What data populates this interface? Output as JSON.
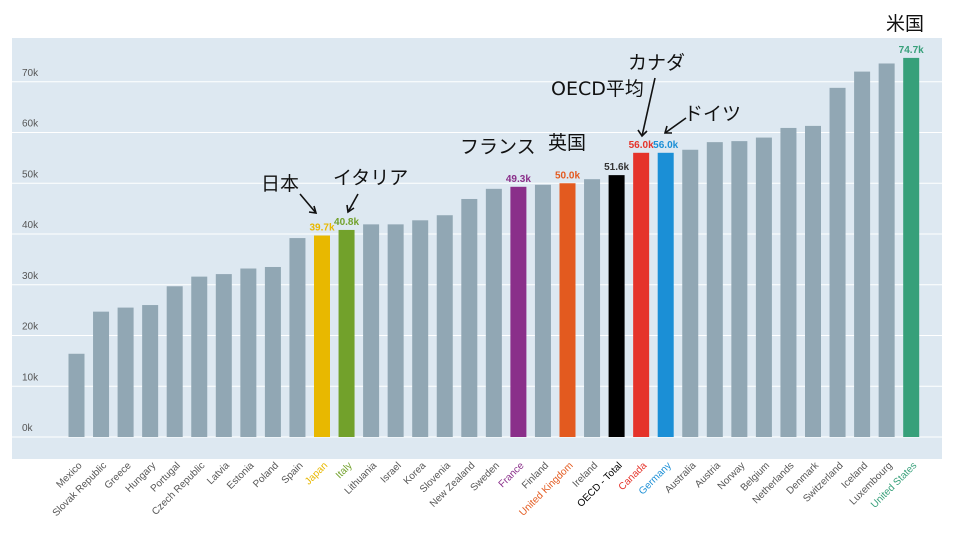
{
  "chart_data": {
    "type": "bar",
    "categories": [
      "Mexico",
      "Slovak Republic",
      "Greece",
      "Hungary",
      "Portugal",
      "Czech Republic",
      "Latvia",
      "Estonia",
      "Poland",
      "Spain",
      "Japan",
      "Italy",
      "Lithuania",
      "Israel",
      "Korea",
      "Slovenia",
      "New Zealand",
      "Sweden",
      "France",
      "Finland",
      "United Kingdom",
      "Ireland",
      "OECD - Total",
      "Canada",
      "Germany",
      "Australia",
      "Austria",
      "Norway",
      "Belgium",
      "Netherlands",
      "Denmark",
      "Switzerland",
      "Iceland",
      "Luxembourg",
      "United States"
    ],
    "values": [
      16.4,
      24.7,
      25.5,
      26.0,
      29.7,
      31.6,
      32.1,
      33.2,
      33.5,
      39.2,
      39.7,
      40.8,
      41.9,
      41.9,
      42.7,
      43.7,
      46.9,
      48.9,
      49.3,
      49.7,
      50.0,
      50.8,
      51.6,
      56.0,
      56.0,
      56.6,
      58.1,
      58.3,
      59.0,
      60.9,
      61.3,
      68.8,
      72.0,
      73.6,
      74.7
    ],
    "ylim": [
      0,
      80
    ],
    "yticks": [
      "0k",
      "10k",
      "20k",
      "30k",
      "40k",
      "50k",
      "60k",
      "70k"
    ],
    "grid": true,
    "colors": {
      "default": "#91a7b4",
      "background": "#dde8f1",
      "Japan": "#e8b800",
      "Italy": "#72a12b",
      "France": "#8a2f8a",
      "United Kingdom": "#e35a1f",
      "OECD - Total": "#000000",
      "Canada": "#e5332a",
      "Germany": "#1b8fd6",
      "United States": "#37a07a"
    },
    "data_labels": {
      "Japan": "39.7k",
      "Italy": "40.8k",
      "France": "49.3k",
      "United Kingdom": "50.0k",
      "OECD - Total": "51.6k",
      "Canada": "56.0k",
      "Germany": "56.0k",
      "United States": "74.7k"
    }
  },
  "annotations": {
    "japan": "日本",
    "italy": "イタリア",
    "france": "フランス",
    "uk": "英国",
    "oecd": "OECD平均",
    "canada": "カナダ",
    "germany": "ドイツ",
    "us": "米国"
  }
}
